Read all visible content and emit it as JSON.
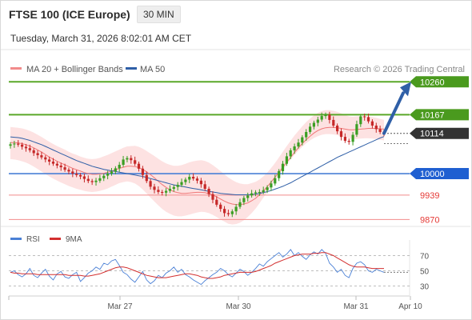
{
  "header": {
    "title": "FTSE 100 (ICE Europe)",
    "interval": "30 MIN",
    "timestamp": "Tuesday, March 31, 2026 8:02:01 AM CET"
  },
  "legend": {
    "ma20_bb": "MA 20 + Bollinger Bands",
    "ma50": "MA 50",
    "credit": "Research © 2026 Trading Central"
  },
  "rsi_legend": {
    "rsi": "RSI",
    "ma9": "9MA"
  },
  "colors": {
    "resistance": "#5aa829",
    "support": "#4a80d6",
    "minor_support": "#f28b8b",
    "candle_up": "#3a9e22",
    "candle_down": "#c62828",
    "bollinger_fill": "#fde2e2",
    "ma20": "#f07777",
    "ma50": "#2f5fa7",
    "rsi": "#4a80d6",
    "rsi_ma": "#d32f2f",
    "price_tag": "#333333",
    "arrow": "#2f5fa7"
  },
  "chart_data": {
    "type": "candlestick",
    "x_tick_labels": [
      "Mar 27",
      "Mar 30",
      "Mar 31",
      "Apr 10"
    ],
    "y_range": [
      9855,
      10272
    ],
    "levels": [
      {
        "value": 10260,
        "label": "10260",
        "kind": "resistance",
        "tag": "filled"
      },
      {
        "value": 10167,
        "label": "10167",
        "kind": "resistance",
        "tag": "filled"
      },
      {
        "value": 10114,
        "label": "10114",
        "kind": "last-price",
        "tag": "dark"
      },
      {
        "value": 10000,
        "label": "10000",
        "kind": "support",
        "tag": "filled"
      },
      {
        "value": 9939,
        "label": "9939",
        "kind": "minor-support",
        "tag": "text"
      },
      {
        "value": 9870,
        "label": "9870",
        "kind": "minor-support",
        "tag": "text"
      }
    ],
    "close": [
      10083,
      10085,
      10082,
      10076,
      10072,
      10066,
      10058,
      10052,
      10046,
      10040,
      10034,
      10028,
      10023,
      10018,
      10011,
      10006,
      10000,
      9996,
      9992,
      9985,
      9979,
      9976,
      9980,
      9987,
      9994,
      10000,
      10006,
      10015,
      10025,
      10040,
      10044,
      10038,
      10028,
      10014,
      9996,
      9979,
      9963,
      9954,
      9948,
      9946,
      9951,
      9957,
      9962,
      9968,
      9976,
      9983,
      9991,
      9986,
      9980,
      9970,
      9957,
      9942,
      9926,
      9912,
      9900,
      9888,
      9885,
      9893,
      9906,
      9919,
      9931,
      9938,
      9944,
      9947,
      9948,
      9953,
      9961,
      9972,
      9987,
      10007,
      10028,
      10049,
      10066,
      10077,
      10088,
      10103,
      10118,
      10133,
      10144,
      10153,
      10163,
      10167,
      10152,
      10136,
      10120,
      10104,
      10093,
      10090,
      10110,
      10140,
      10162,
      10160,
      10148,
      10136,
      10126,
      10118,
      10114
    ],
    "bb_upper": [
      10132,
      10131,
      10130,
      10128,
      10125,
      10121,
      10116,
      10110,
      10104,
      10097,
      10090,
      10084,
      10078,
      10073,
      10068,
      10062,
      10057,
      10053,
      10048,
      10045,
      10042,
      10041,
      10042,
      10045,
      10049,
      10053,
      10058,
      10063,
      10068,
      10073,
      10077,
      10078,
      10079,
      10076,
      10071,
      10064,
      10057,
      10050,
      10042,
      10035,
      10029,
      10025,
      10022,
      10022,
      10024,
      10028,
      10032,
      10035,
      10037,
      10038,
      10036,
      10031,
      10024,
      10016,
      10007,
      9998,
      9989,
      9982,
      9976,
      9972,
      9970,
      9970,
      9973,
      9977,
      9983,
      9992,
      10003,
      10016,
      10030,
      10046,
      10062,
      10078,
      10093,
      10108,
      10121,
      10134,
      10146,
      10156,
      10165,
      10172,
      10177,
      10180,
      10180,
      10178,
      10175,
      10171,
      10166,
      10162,
      10161,
      10162,
      10163,
      10163,
      10162,
      10160,
      10158,
      10155,
      10152
    ],
    "bb_lower": [
      10041,
      10040,
      10038,
      10035,
      10031,
      10026,
      10020,
      10013,
      10006,
      9999,
      9992,
      9986,
      9980,
      9975,
      9970,
      9965,
      9961,
      9957,
      9954,
      9951,
      9949,
      9948,
      9949,
      9951,
      9954,
      9958,
      9963,
      9968,
      9973,
      9976,
      9978,
      9976,
      9972,
      9965,
      9955,
      9944,
      9932,
      9921,
      9910,
      9900,
      9892,
      9886,
      9881,
      9879,
      9879,
      9881,
      9884,
      9887,
      9890,
      9892,
      9891,
      9888,
      9883,
      9877,
      9870,
      9864,
      9858,
      9856,
      9857,
      9861,
      9868,
      9877,
      9888,
      9901,
      9916,
      9932,
      9948,
      9964,
      9980,
      9996,
      10011,
      10026,
      10040,
      10053,
      10065,
      10076,
      10086,
      10094,
      10101,
      10106,
      10110,
      10112,
      10112,
      10111,
      10109,
      10106,
      10102,
      10099,
      10098,
      10098,
      10099,
      10100,
      10100,
      10099,
      10098,
      10096,
      10094
    ],
    "ma20": [
      10088,
      10088,
      10087,
      10085,
      10082,
      10078,
      10073,
      10067,
      10061,
      10054,
      10047,
      10041,
      10035,
      10030,
      10025,
      10020,
      10015,
      10011,
      10007,
      10003,
      10000,
      9998,
      9998,
      9999,
      10001,
      10004,
      10007,
      10011,
      10015,
      10018,
      10021,
      10021,
      10020,
      10017,
      10012,
      10005,
      9997,
      9988,
      9978,
      9969,
      9961,
      9954,
      9949,
      9946,
      9944,
      9944,
      9945,
      9946,
      9947,
      9947,
      9946,
      9943,
      9939,
      9934,
      9928,
      9922,
      9917,
      9914,
      9912,
      9912,
      9914,
      9917,
      9923,
      9930,
      9940,
      9951,
      9963,
      9976,
      9990,
      10004,
      10018,
      10032,
      10046,
      10060,
      10073,
      10085,
      10096,
      10106,
      10115,
      10122,
      10127,
      10130,
      10131,
      10131,
      10130,
      10128,
      10126,
      10124,
      10124,
      10125,
      10126,
      10127,
      10128,
      10128,
      10128,
      10127,
      10126
    ],
    "ma50": [
      10104,
      10103,
      10102,
      10100,
      10097,
      10094,
      10090,
      10086,
      10082,
      10077,
      10072,
      10067,
      10062,
      10057,
      10052,
      10047,
      10042,
      10037,
      10033,
      10029,
      10025,
      10021,
      10018,
      10015,
      10012,
      10010,
      10008,
      10006,
      10004,
      10002,
      10000,
      9998,
      9996,
      9994,
      9992,
      9989,
      9986,
      9983,
      9980,
      9977,
      9974,
      9971,
      9968,
      9966,
      9964,
      9962,
      9960,
      9958,
      9956,
      9954,
      9952,
      9950,
      9948,
      9946,
      9944,
      9943,
      9942,
      9941,
      9940,
      9940,
      9940,
      9940,
      9941,
      9942,
      9944,
      9946,
      9949,
      9952,
      9956,
      9960,
      9964,
      9969,
      9974,
      9980,
      9986,
      9992,
      9998,
      10004,
      10010,
      10016,
      10022,
      10028,
      10034,
      10040,
      10046,
      10051,
      10056,
      10061,
      10066,
      10071,
      10076,
      10081,
      10086,
      10091,
      10096,
      10101,
      10105
    ],
    "forecast_arrow": {
      "from": 10114,
      "to": 10260
    },
    "rsi": {
      "ticks": [
        70,
        50,
        30
      ],
      "y_range": [
        20,
        80
      ],
      "rsi_values": [
        48,
        50,
        45,
        42,
        46,
        53,
        44,
        41,
        47,
        52,
        43,
        38,
        46,
        49,
        42,
        40,
        45,
        48,
        36,
        41,
        47,
        50,
        55,
        52,
        60,
        58,
        63,
        65,
        57,
        48,
        45,
        39,
        35,
        42,
        49,
        38,
        33,
        37,
        44,
        41,
        47,
        50,
        55,
        48,
        52,
        45,
        42,
        38,
        35,
        32,
        37,
        41,
        45,
        48,
        53,
        50,
        45,
        42,
        47,
        52,
        49,
        44,
        48,
        53,
        59,
        56,
        62,
        66,
        70,
        74,
        68,
        72,
        78,
        70,
        74,
        69,
        65,
        71,
        75,
        72,
        78,
        73,
        60,
        55,
        48,
        52,
        44,
        41,
        53,
        60,
        62,
        58,
        50,
        48,
        52,
        50,
        48
      ],
      "ma_values": [
        48,
        47,
        47,
        46,
        46,
        46,
        46,
        45,
        45,
        45,
        45,
        45,
        45,
        45,
        45,
        44,
        44,
        44,
        44,
        43,
        43,
        44,
        45,
        46,
        48,
        50,
        52,
        54,
        55,
        55,
        54,
        52,
        50,
        48,
        46,
        44,
        43,
        42,
        41,
        41,
        41,
        42,
        43,
        44,
        45,
        46,
        46,
        45,
        44,
        42,
        41,
        40,
        40,
        41,
        42,
        44,
        45,
        46,
        47,
        48,
        48,
        48,
        48,
        49,
        51,
        53,
        55,
        57,
        60,
        62,
        64,
        66,
        68,
        70,
        71,
        72,
        72,
        72,
        73,
        73,
        74,
        74,
        72,
        70,
        67,
        64,
        61,
        58,
        56,
        55,
        55,
        55,
        54,
        53,
        53,
        53,
        53
      ]
    }
  }
}
